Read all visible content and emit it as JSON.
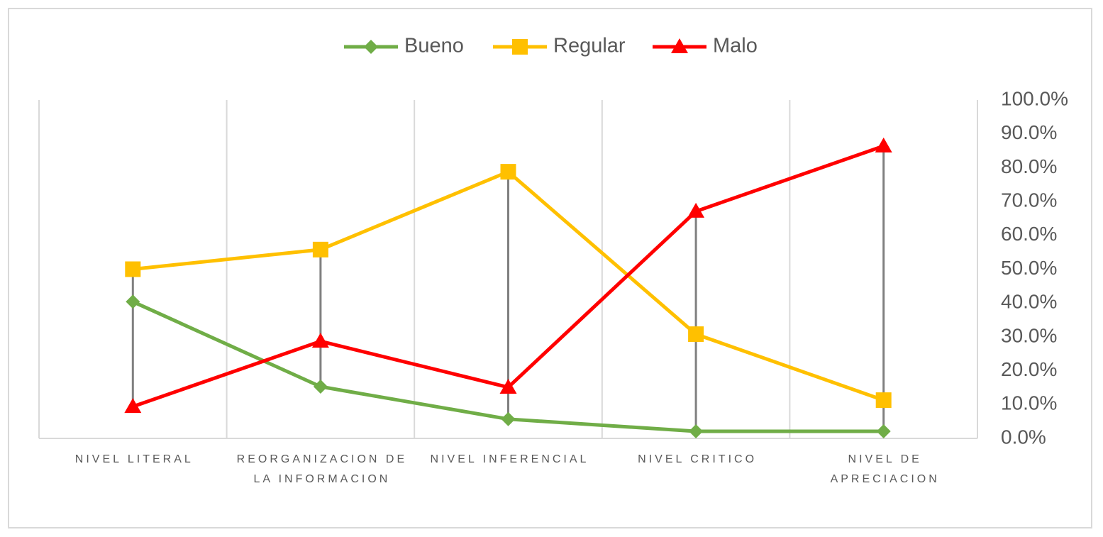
{
  "chart_data": {
    "type": "line",
    "categories": [
      "NIVEL LITERAL",
      "REORGANIZACION DE LA INFORMACION",
      "NIVEL INFERENCIAL",
      "NIVEL CRITICO",
      "NIVEL DE APRECIACION"
    ],
    "series": [
      {
        "name": "Bueno",
        "color": "#70ad47",
        "marker": "diamond",
        "values": [
          40.4,
          15.3,
          5.7,
          2.1,
          2.1
        ]
      },
      {
        "name": "Regular",
        "color": "#ffc000",
        "marker": "square",
        "values": [
          50.0,
          55.8,
          78.8,
          30.8,
          11.3
        ]
      },
      {
        "name": "Malo",
        "color": "#ff0000",
        "marker": "triangle",
        "values": [
          9.4,
          28.7,
          15.1,
          67.1,
          86.4
        ]
      }
    ],
    "ylim": [
      0,
      100
    ],
    "yticks": [
      {
        "value": 0,
        "label": "0.0%"
      },
      {
        "value": 10,
        "label": "10.0%"
      },
      {
        "value": 20,
        "label": "20.0%"
      },
      {
        "value": 30,
        "label": "30.0%"
      },
      {
        "value": 40,
        "label": "40.0%"
      },
      {
        "value": 50,
        "label": "50.0%"
      },
      {
        "value": 60,
        "label": "60.0%"
      },
      {
        "value": 70,
        "label": "70.0%"
      },
      {
        "value": 80,
        "label": "80.0%"
      },
      {
        "value": 90,
        "label": "90.0%"
      },
      {
        "value": 100,
        "label": "100.0%"
      }
    ],
    "y_axis_side": "right",
    "grid": "vertical",
    "high_low_lines": true,
    "legend": "top"
  }
}
